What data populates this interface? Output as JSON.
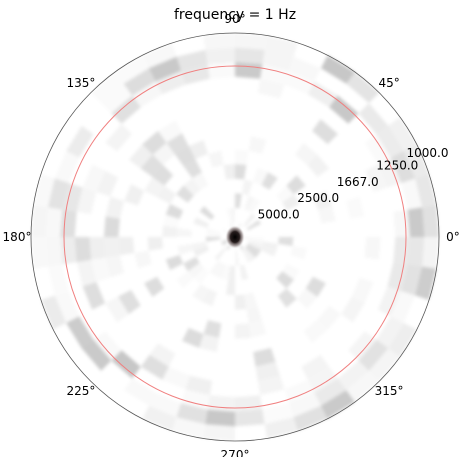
{
  "chart_data": {
    "type": "heatmap",
    "projection": "polar",
    "title": "frequency = 1 Hz",
    "angular_ticks": [
      {
        "deg": 0,
        "label": "0°"
      },
      {
        "deg": 45,
        "label": "45°"
      },
      {
        "deg": 90,
        "label": "90°"
      },
      {
        "deg": 135,
        "label": "135°"
      },
      {
        "deg": 180,
        "label": "180°"
      },
      {
        "deg": 225,
        "label": "225°"
      },
      {
        "deg": 270,
        "label": "270°"
      },
      {
        "deg": 315,
        "label": "315°"
      }
    ],
    "radial_ticks": [
      {
        "fraction": 0.21,
        "label": "5000.0"
      },
      {
        "fraction": 0.42,
        "label": "2500.0"
      },
      {
        "fraction": 0.63,
        "label": "1667.0"
      },
      {
        "fraction": 0.84,
        "label": "1250.0"
      },
      {
        "fraction": 1.0,
        "label": "1000.0"
      }
    ],
    "radial_label_angle_deg": 22.5,
    "grid": false,
    "colormap": "white-to-black",
    "peak": {
      "angle_deg": 0,
      "radius_fraction": 0.0,
      "intensity": 1.0
    },
    "reference_circle": {
      "radius_fraction": 0.84,
      "color": "#f08080"
    }
  }
}
